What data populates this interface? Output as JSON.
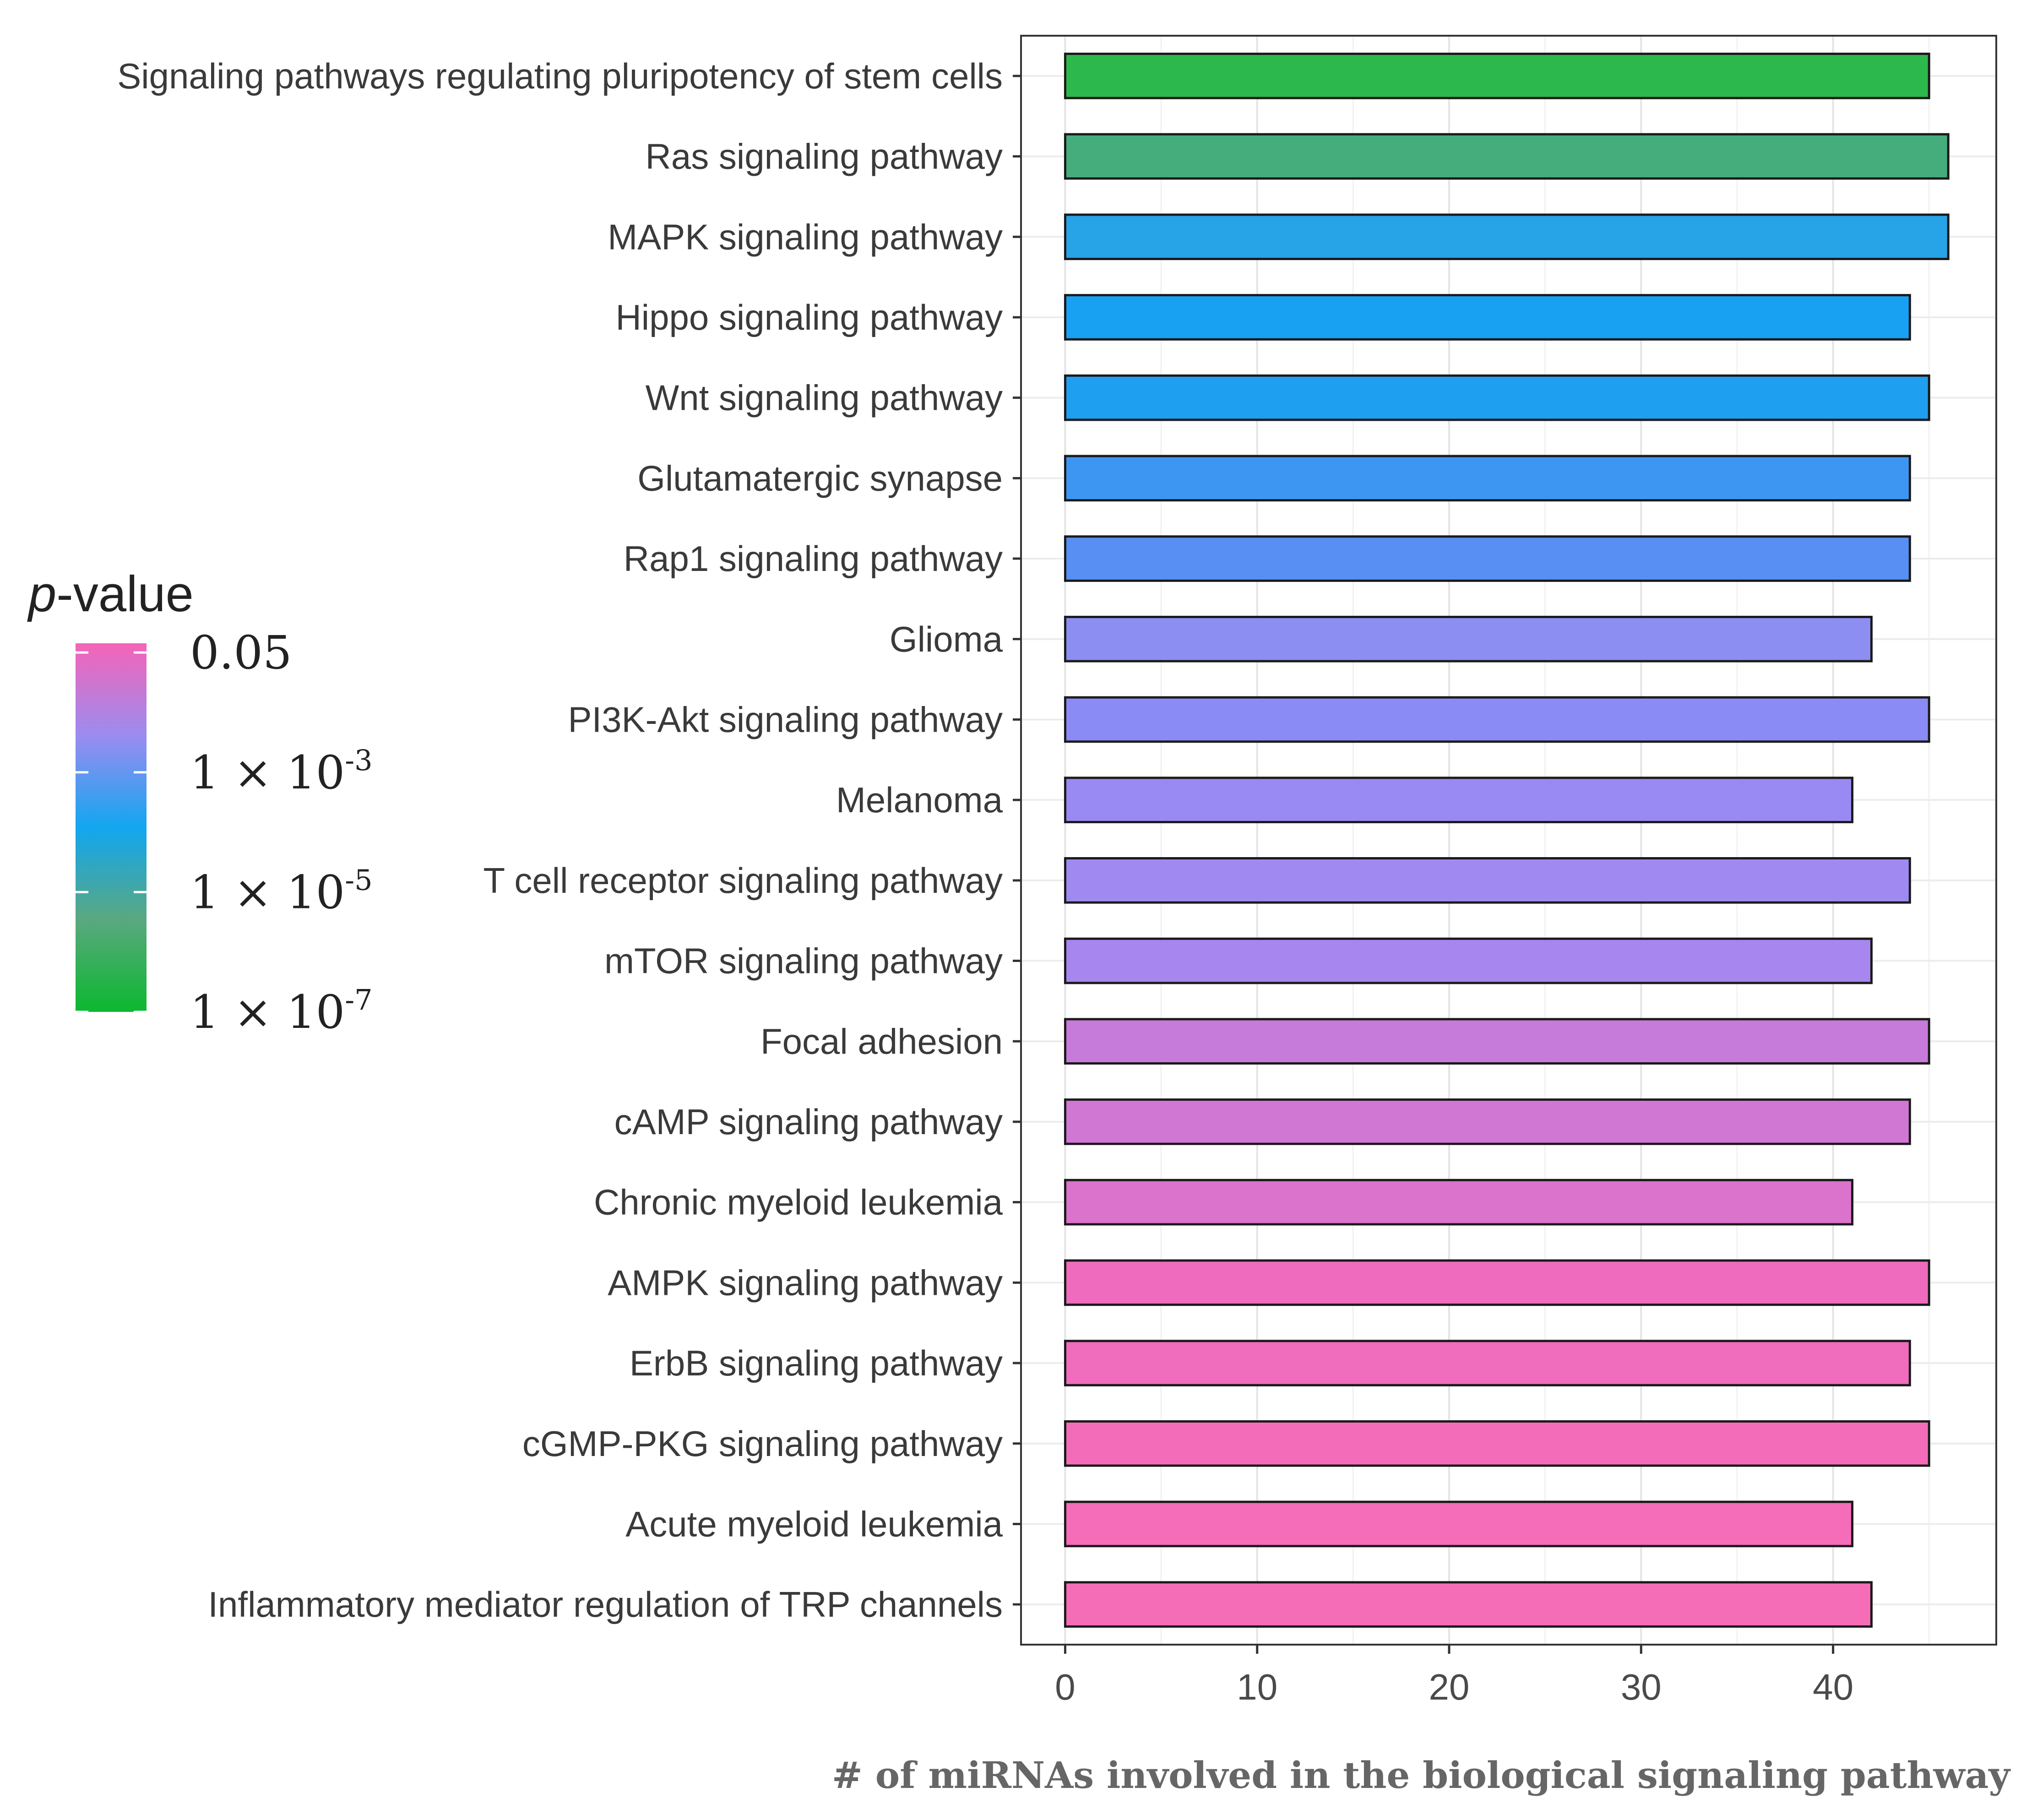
{
  "chart_data": {
    "type": "bar",
    "orientation": "horizontal",
    "categories": [
      "Signaling pathways regulating pluripotency of stem cells",
      "Ras signaling pathway",
      "MAPK signaling pathway",
      "Hippo signaling pathway",
      "Wnt signaling pathway",
      "Glutamatergic synapse",
      "Rap1 signaling pathway",
      "Glioma",
      "PI3K-Akt signaling pathway",
      "Melanoma",
      "T cell receptor signaling pathway",
      "mTOR signaling pathway",
      "Focal adhesion",
      "cAMP signaling pathway",
      "Chronic myeloid leukemia",
      "AMPK signaling pathway",
      "ErbB signaling pathway",
      "cGMP-PKG signaling pathway",
      "Acute myeloid leukemia",
      "Inflammatory mediator regulation of TRP channels"
    ],
    "values": [
      45,
      46,
      46,
      44,
      45,
      44,
      44,
      42,
      45,
      41,
      44,
      42,
      45,
      44,
      41,
      45,
      44,
      45,
      41,
      42
    ],
    "bar_colors": [
      "#2db84d",
      "#45ad7b",
      "#27a3e8",
      "#18a0f2",
      "#1f9ff0",
      "#3d97f2",
      "#5790f2",
      "#8c8ef2",
      "#8a8bf5",
      "#9989f3",
      "#a08af2",
      "#a886ef",
      "#c67ad9",
      "#d077d4",
      "#db72cc",
      "#ee6bbd",
      "#f06cbd",
      "#f36cba",
      "#f56cb8",
      "#f56cb7"
    ],
    "xlabel": "# of miRNAs involved in the biological signaling pathway",
    "ylabel": "",
    "xlim": [
      -2.3,
      48.5
    ],
    "xticks": [
      0,
      10,
      20,
      30,
      40
    ],
    "xtick_labels": [
      "0",
      "10",
      "20",
      "30",
      "40"
    ],
    "grid": true,
    "legend": {
      "title_italic": "p",
      "title_rest": "-value",
      "placement": "left",
      "gradient_colors": [
        "#f564b8",
        "#9b8cf0",
        "#12a6f0",
        "#5aa880",
        "#0cb82f"
      ],
      "labels": [
        {
          "base": "0.05",
          "sup": ""
        },
        {
          "base": "1 × 10",
          "sup": "-3"
        },
        {
          "base": "1 × 10",
          "sup": "-5"
        },
        {
          "base": "1 × 10",
          "sup": "-7"
        }
      ]
    }
  }
}
